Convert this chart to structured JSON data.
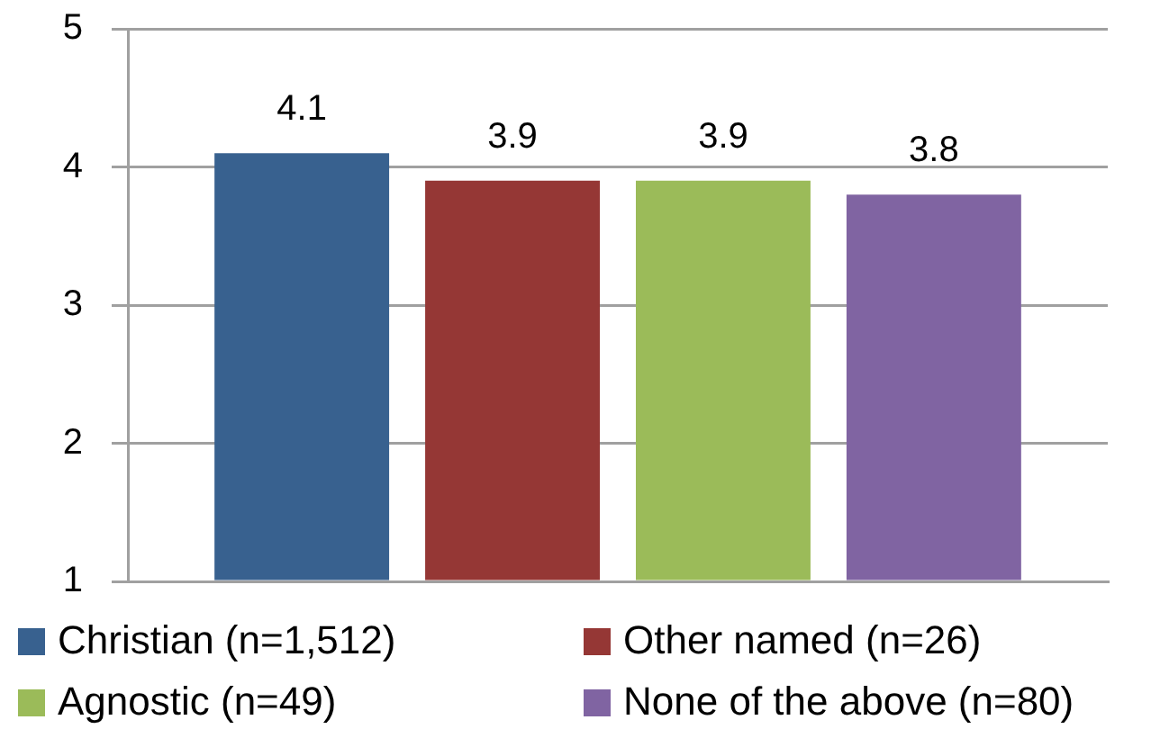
{
  "chart_data": {
    "type": "bar",
    "categories": [
      null
    ],
    "series": [
      {
        "name": "Christian (n=1,512)",
        "color": "#38618f",
        "values": [
          4.1
        ]
      },
      {
        "name": "Other named (n=26)",
        "color": "#953735",
        "values": [
          3.9
        ]
      },
      {
        "name": "Agnostic (n=49)",
        "color": "#9bbb59",
        "values": [
          3.9
        ]
      },
      {
        "name": "None of the above (n=80)",
        "color": "#8064a2",
        "values": [
          3.8
        ]
      }
    ],
    "ylim": [
      1,
      5
    ],
    "yticks": [
      1,
      2,
      3,
      4,
      5
    ],
    "grid": "y",
    "legend": "bottom",
    "data_labels": true
  }
}
